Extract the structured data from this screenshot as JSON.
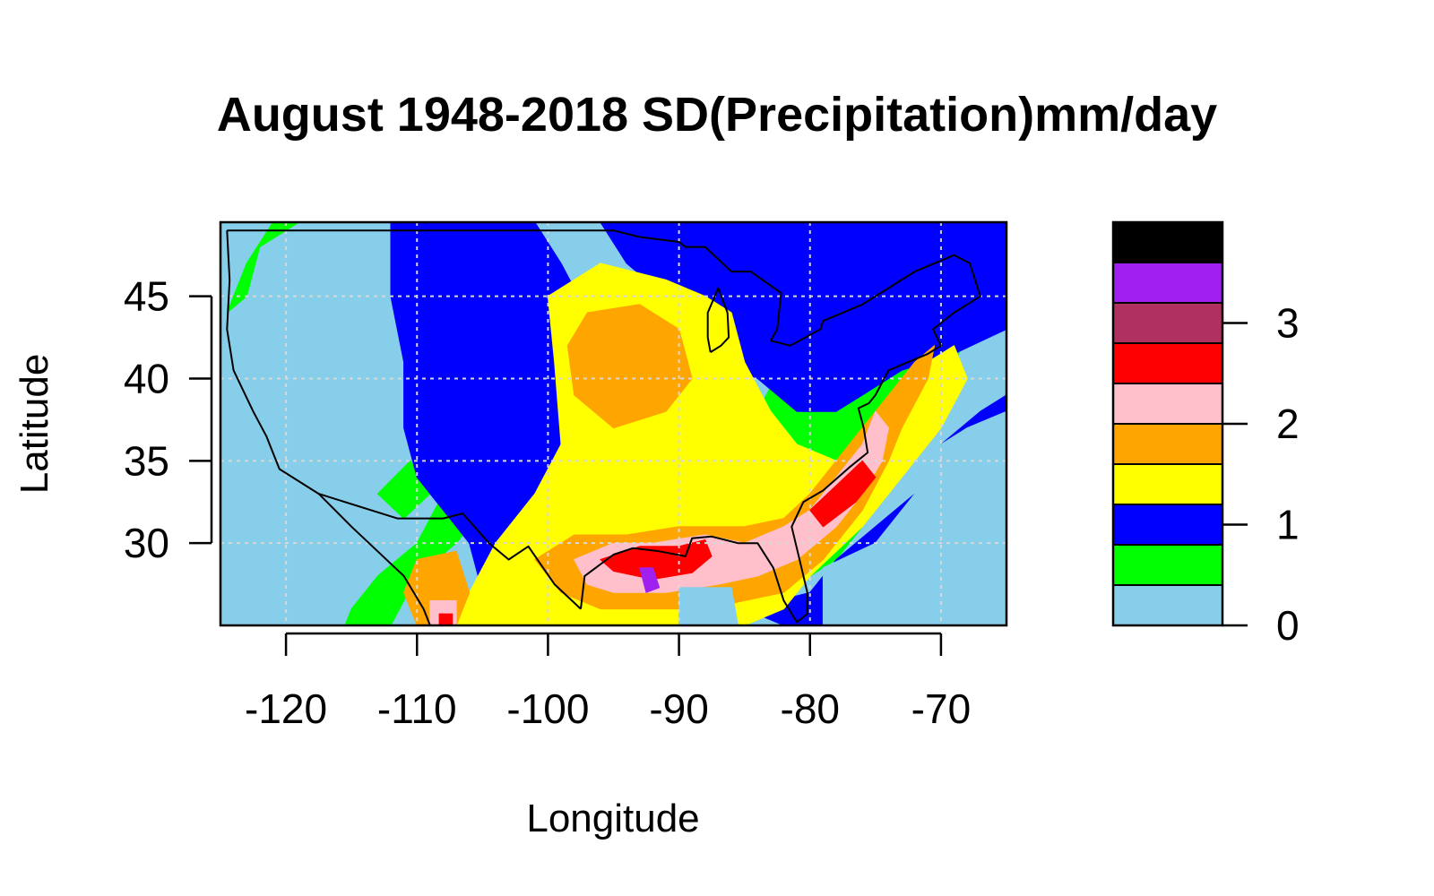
{
  "chart_data": {
    "type": "heatmap",
    "title": "August 1948-2018 SD(Precipitation)mm/day",
    "xlabel": "Longitude",
    "ylabel": "Latitude",
    "xlim": [
      -125,
      -65
    ],
    "ylim": [
      25,
      49.5
    ],
    "x_ticks": [
      -120,
      -110,
      -100,
      -90,
      -80,
      -70
    ],
    "x_tick_labels": [
      "-120",
      "-110",
      "-100",
      "-90",
      "-80",
      "-70"
    ],
    "y_ticks": [
      30,
      35,
      40,
      45
    ],
    "y_tick_labels": [
      "30",
      "35",
      "40",
      "45"
    ],
    "grid": true,
    "grid_lon": [
      -120,
      -110,
      -100,
      -90,
      -80,
      -70
    ],
    "grid_lat": [
      30,
      35,
      40,
      45
    ],
    "legend_position": "right",
    "colorbar": {
      "levels": [
        0,
        0.4,
        0.8,
        1.2,
        1.6,
        2.0,
        2.4,
        2.8,
        3.2,
        3.6,
        4.0
      ],
      "colors": [
        "#87ceeb",
        "#00ff00",
        "#0000ff",
        "#ffff00",
        "#ffa500",
        "#ffc0cb",
        "#ff0000",
        "#b03060",
        "#a020f0",
        "#000000"
      ],
      "ticks": [
        0,
        1,
        2,
        3
      ],
      "tick_labels": [
        "0",
        "1",
        "2",
        "3"
      ]
    },
    "regions": [
      {
        "level": 0,
        "points": [
          [
            -125,
            25
          ],
          [
            -65,
            25
          ],
          [
            -65,
            49.5
          ],
          [
            -125,
            49.5
          ]
        ]
      },
      {
        "level": 1,
        "points": [
          [
            -124.5,
            44
          ],
          [
            -123,
            47
          ],
          [
            -121,
            49.5
          ],
          [
            -103,
            49.5
          ],
          [
            -102,
            45
          ],
          [
            -104,
            41
          ],
          [
            -106,
            37
          ],
          [
            -108,
            33
          ],
          [
            -110,
            30
          ],
          [
            -113,
            28
          ],
          [
            -115,
            26
          ],
          [
            -115.5,
            25
          ],
          [
            -112,
            25
          ],
          [
            -110,
            28
          ],
          [
            -107,
            30
          ],
          [
            -104,
            33
          ],
          [
            -102,
            37
          ],
          [
            -100.5,
            41
          ],
          [
            -100,
            45
          ],
          [
            -101,
            49.5
          ],
          [
            -109,
            49.5
          ],
          [
            -119,
            49.5
          ],
          [
            -122,
            48
          ],
          [
            -123,
            45
          ]
        ]
      },
      {
        "level": 1,
        "points": [
          [
            -113,
            33
          ],
          [
            -110.5,
            35
          ],
          [
            -109,
            33
          ],
          [
            -111,
            31.5
          ]
        ]
      },
      {
        "level": 1,
        "points": [
          [
            -85,
            30
          ],
          [
            -80,
            28
          ],
          [
            -78,
            29
          ],
          [
            -74,
            33
          ],
          [
            -72,
            36
          ],
          [
            -69,
            41
          ],
          [
            -67,
            44
          ],
          [
            -66,
            48
          ],
          [
            -67,
            49.5
          ],
          [
            -76,
            49.5
          ],
          [
            -79,
            45
          ],
          [
            -82,
            41
          ],
          [
            -84,
            38
          ],
          [
            -86,
            34
          ]
        ]
      },
      {
        "level": 2,
        "points": [
          [
            -112,
            49.5
          ],
          [
            -106,
            49.5
          ],
          [
            -101,
            49.5
          ],
          [
            -99,
            47
          ],
          [
            -97,
            44
          ],
          [
            -96,
            40
          ],
          [
            -95,
            36
          ],
          [
            -94,
            32
          ],
          [
            -96,
            29
          ],
          [
            -98,
            27
          ],
          [
            -101,
            25
          ],
          [
            -103,
            25
          ],
          [
            -105,
            27
          ],
          [
            -106,
            30
          ],
          [
            -108,
            32
          ],
          [
            -110,
            34
          ],
          [
            -111,
            37
          ],
          [
            -111,
            41
          ],
          [
            -112,
            45
          ]
        ]
      },
      {
        "level": 2,
        "points": [
          [
            -96,
            49.5
          ],
          [
            -65,
            49.5
          ],
          [
            -65,
            43
          ],
          [
            -69,
            41.5
          ],
          [
            -73,
            40.5
          ],
          [
            -76,
            39
          ],
          [
            -78,
            38
          ],
          [
            -81,
            38
          ],
          [
            -84,
            40
          ],
          [
            -87,
            41
          ],
          [
            -89,
            43
          ],
          [
            -91,
            45
          ],
          [
            -94,
            47
          ]
        ]
      },
      {
        "level": 2,
        "points": [
          [
            -85,
            26
          ],
          [
            -80,
            27
          ],
          [
            -78,
            29
          ],
          [
            -75,
            31
          ],
          [
            -72,
            33
          ],
          [
            -70,
            36
          ],
          [
            -67,
            38
          ],
          [
            -65,
            39
          ],
          [
            -65,
            25
          ],
          [
            -82,
            25
          ]
        ]
      },
      {
        "level": 3,
        "points": [
          [
            -100,
            45
          ],
          [
            -96,
            47
          ],
          [
            -91,
            46
          ],
          [
            -88,
            45
          ],
          [
            -86,
            44
          ],
          [
            -85,
            41
          ],
          [
            -83,
            38
          ],
          [
            -81,
            36
          ],
          [
            -78,
            35
          ],
          [
            -75,
            36
          ],
          [
            -73,
            39
          ],
          [
            -71,
            41
          ],
          [
            -69,
            42
          ],
          [
            -68,
            40
          ],
          [
            -70,
            37
          ],
          [
            -73,
            34
          ],
          [
            -76,
            31
          ],
          [
            -80,
            28
          ],
          [
            -82,
            26
          ],
          [
            -85,
            25
          ],
          [
            -107,
            25
          ],
          [
            -106,
            27
          ],
          [
            -104,
            30
          ],
          [
            -101,
            33
          ],
          [
            -99,
            36
          ],
          [
            -99.5,
            41
          ]
        ]
      },
      {
        "level": 4,
        "points": [
          [
            -97,
            44
          ],
          [
            -93,
            44.5
          ],
          [
            -90,
            43
          ],
          [
            -89,
            40
          ],
          [
            -91,
            38
          ],
          [
            -95,
            37
          ],
          [
            -98,
            39
          ],
          [
            -98.5,
            42
          ]
        ]
      },
      {
        "level": 4,
        "points": [
          [
            -101,
            29
          ],
          [
            -98,
            30.5
          ],
          [
            -94,
            30.5
          ],
          [
            -90,
            31
          ],
          [
            -85,
            31
          ],
          [
            -82,
            31.5
          ],
          [
            -80,
            33
          ],
          [
            -78,
            35
          ],
          [
            -76,
            37
          ],
          [
            -74,
            39
          ],
          [
            -72,
            41
          ],
          [
            -70.5,
            42
          ],
          [
            -71,
            40
          ],
          [
            -73,
            37
          ],
          [
            -74,
            35
          ],
          [
            -76,
            32
          ],
          [
            -79,
            29
          ],
          [
            -82,
            27
          ],
          [
            -85,
            26.5
          ],
          [
            -88,
            26
          ],
          [
            -92,
            26
          ],
          [
            -96,
            26
          ],
          [
            -99,
            27
          ]
        ]
      },
      {
        "level": 4,
        "points": [
          [
            -110,
            29
          ],
          [
            -107,
            29.5
          ],
          [
            -106,
            27
          ],
          [
            -107,
            25
          ],
          [
            -110,
            25
          ],
          [
            -111,
            27
          ]
        ]
      },
      {
        "level": 5,
        "points": [
          [
            -98,
            29
          ],
          [
            -95,
            30
          ],
          [
            -92,
            30
          ],
          [
            -88,
            30.5
          ],
          [
            -85,
            30
          ],
          [
            -82,
            31
          ],
          [
            -80,
            32
          ],
          [
            -78,
            34
          ],
          [
            -76,
            36
          ],
          [
            -75,
            38
          ],
          [
            -74,
            37
          ],
          [
            -74.5,
            35
          ],
          [
            -76,
            33
          ],
          [
            -78,
            31
          ],
          [
            -81,
            29
          ],
          [
            -84,
            28
          ],
          [
            -87,
            27.5
          ],
          [
            -91,
            27
          ],
          [
            -95,
            27
          ],
          [
            -97,
            27.5
          ]
        ]
      },
      {
        "level": 5,
        "points": [
          [
            -109,
            26.5
          ],
          [
            -107,
            26.5
          ],
          [
            -107,
            25
          ],
          [
            -109,
            25
          ]
        ]
      },
      {
        "level": 6,
        "points": [
          [
            -96,
            29
          ],
          [
            -93,
            29.8
          ],
          [
            -90,
            29.8
          ],
          [
            -88,
            30.2
          ],
          [
            -87.5,
            29.2
          ],
          [
            -89,
            28.2
          ],
          [
            -92,
            27.8
          ],
          [
            -95,
            28.3
          ]
        ]
      },
      {
        "level": 6,
        "points": [
          [
            -80,
            32
          ],
          [
            -78,
            33.5
          ],
          [
            -76,
            35
          ],
          [
            -75,
            34
          ],
          [
            -76.5,
            32.5
          ],
          [
            -79,
            31
          ]
        ]
      },
      {
        "level": 6,
        "points": [
          [
            -108.3,
            25.7
          ],
          [
            -107.3,
            25.7
          ],
          [
            -107.3,
            25
          ],
          [
            -108.3,
            25
          ]
        ]
      },
      {
        "level": 8,
        "points": [
          [
            -93,
            28.5
          ],
          [
            -92,
            28.5
          ],
          [
            -91.5,
            27.3
          ],
          [
            -92.5,
            27
          ]
        ]
      },
      {
        "level": 0,
        "points": [
          [
            -90,
            25
          ],
          [
            -90,
            27.3
          ],
          [
            -86,
            27.3
          ],
          [
            -85.5,
            25
          ]
        ]
      },
      {
        "level": 0,
        "points": [
          [
            -79,
            25
          ],
          [
            -79,
            28.5
          ],
          [
            -75,
            30
          ],
          [
            -72,
            33
          ],
          [
            -72,
            35
          ],
          [
            -68,
            37
          ],
          [
            -65,
            38
          ],
          [
            -65,
            25
          ]
        ]
      }
    ],
    "coastline": [
      {
        "points": [
          [
            -124.5,
            49
          ],
          [
            -124.3,
            46
          ],
          [
            -124.5,
            43
          ],
          [
            -124,
            40.5
          ],
          [
            -122.5,
            38
          ],
          [
            -121.5,
            36.5
          ],
          [
            -120.5,
            34.5
          ],
          [
            -117.5,
            33
          ],
          [
            -115,
            31
          ],
          [
            -113,
            29.5
          ],
          [
            -111,
            28
          ],
          [
            -109.5,
            26
          ],
          [
            -109,
            25
          ]
        ]
      },
      {
        "points": [
          [
            -117.5,
            33
          ],
          [
            -111.5,
            31.5
          ],
          [
            -108,
            31.5
          ],
          [
            -106.5,
            31.8
          ],
          [
            -104.5,
            30
          ],
          [
            -103,
            29
          ],
          [
            -101.5,
            29.8
          ],
          [
            -99.5,
            27.5
          ],
          [
            -97.5,
            26
          ]
        ]
      },
      {
        "points": [
          [
            -97.5,
            26
          ],
          [
            -97.2,
            28
          ],
          [
            -95,
            29.3
          ],
          [
            -93.5,
            29.7
          ],
          [
            -91.5,
            29.5
          ],
          [
            -89.5,
            29.2
          ],
          [
            -89,
            30.3
          ],
          [
            -87.5,
            30.4
          ],
          [
            -85.5,
            30
          ],
          [
            -84,
            30
          ],
          [
            -82.8,
            28.5
          ],
          [
            -82,
            26.5
          ],
          [
            -81,
            25.2
          ],
          [
            -80.2,
            25.7
          ],
          [
            -80.2,
            27
          ],
          [
            -80.8,
            29
          ],
          [
            -81.4,
            31
          ],
          [
            -80.5,
            32.5
          ],
          [
            -79,
            33.2
          ],
          [
            -77,
            34.6
          ],
          [
            -75.6,
            35.5
          ],
          [
            -75.9,
            37
          ],
          [
            -76.3,
            38.2
          ],
          [
            -75.5,
            38.5
          ],
          [
            -75,
            39
          ],
          [
            -74,
            40.5
          ],
          [
            -72.5,
            41
          ],
          [
            -71,
            41.5
          ],
          [
            -70,
            42
          ],
          [
            -70.6,
            43
          ],
          [
            -69,
            44
          ],
          [
            -67,
            45
          ],
          [
            -67.8,
            47
          ],
          [
            -69,
            47.5
          ],
          [
            -70.5,
            47
          ],
          [
            -72,
            46.5
          ],
          [
            -74,
            45.5
          ],
          [
            -76,
            44.5
          ],
          [
            -79,
            43.5
          ],
          [
            -79.2,
            43
          ],
          [
            -81.5,
            42
          ],
          [
            -83,
            42.3
          ],
          [
            -82.5,
            43
          ],
          [
            -82.2,
            45.2
          ],
          [
            -84,
            46.2
          ],
          [
            -84.5,
            46.5
          ],
          [
            -86,
            46.5
          ],
          [
            -88,
            48
          ],
          [
            -89.5,
            48
          ],
          [
            -90,
            48.3
          ],
          [
            -93,
            48.6
          ],
          [
            -95,
            49
          ],
          [
            -97,
            49
          ],
          [
            -110,
            49
          ],
          [
            -124.5,
            49
          ]
        ]
      },
      {
        "points": [
          [
            -87.6,
            41.6
          ],
          [
            -87.8,
            42.5
          ],
          [
            -87.8,
            44
          ],
          [
            -87,
            45.5
          ],
          [
            -86.3,
            44
          ],
          [
            -86.2,
            42.5
          ],
          [
            -86.8,
            42
          ],
          [
            -87.6,
            41.6
          ]
        ]
      }
    ]
  }
}
